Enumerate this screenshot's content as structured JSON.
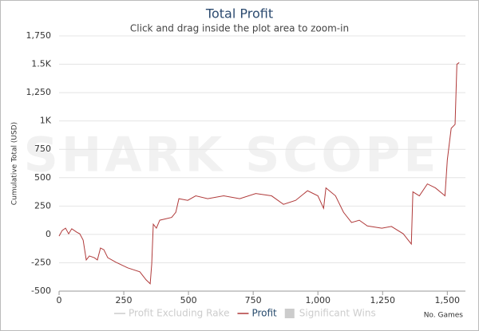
{
  "chart_data": {
    "type": "line",
    "title": "Total Profit",
    "subtitle": "Click and drag inside the plot area to zoom-in",
    "watermark": "SHARK SCOPE",
    "x_label": "No. Games",
    "y_label": "Cumulative Total (USD)",
    "xlim": [
      0,
      1570
    ],
    "ylim": [
      -500,
      1750
    ],
    "xticks": [
      0,
      250,
      500,
      750,
      {
        "value": 1000,
        "label": "1,000"
      },
      {
        "value": 1250,
        "label": "1,250"
      },
      {
        "value": 1500,
        "label": "1,500"
      }
    ],
    "yticks": [
      -500,
      -250,
      0,
      250,
      500,
      750,
      {
        "value": 1000,
        "label": "1K"
      },
      {
        "value": 1250,
        "label": "1,250"
      },
      {
        "value": 1500,
        "label": "1.5K"
      },
      {
        "value": 1750,
        "label": "1,750"
      }
    ],
    "grid": true,
    "x": [
      0,
      12,
      25,
      37,
      49,
      68,
      80,
      93,
      105,
      117,
      136,
      148,
      160,
      173,
      188,
      219,
      265,
      312,
      336,
      352,
      358,
      364,
      376,
      389,
      435,
      451,
      463,
      497,
      528,
      574,
      636,
      698,
      760,
      821,
      867,
      914,
      960,
      1000,
      1022,
      1031,
      1068,
      1099,
      1130,
      1160,
      1191,
      1247,
      1284,
      1330,
      1361,
      1367,
      1392,
      1423,
      1454,
      1491,
      1500,
      1515,
      1530,
      1537,
      1546
    ],
    "series": [
      {
        "name": "Profit",
        "color": "#b03a3a",
        "values": [
          -15,
          35,
          55,
          5,
          50,
          20,
          5,
          -50,
          -225,
          -190,
          -205,
          -225,
          -120,
          -135,
          -205,
          -245,
          -295,
          -330,
          -400,
          -435,
          -260,
          90,
          55,
          125,
          150,
          195,
          315,
          300,
          340,
          315,
          340,
          315,
          360,
          340,
          265,
          300,
          385,
          340,
          230,
          410,
          340,
          195,
          105,
          125,
          75,
          55,
          70,
          5,
          -85,
          375,
          340,
          445,
          410,
          340,
          655,
          935,
          970,
          1500,
          1515
        ]
      }
    ],
    "inactive_legend": [
      {
        "name": "Profit Excluding Rake",
        "symbol": "line",
        "color": "#cccccc"
      },
      {
        "name": "Significant Wins",
        "symbol": "box",
        "color": "#cccccc"
      }
    ]
  }
}
